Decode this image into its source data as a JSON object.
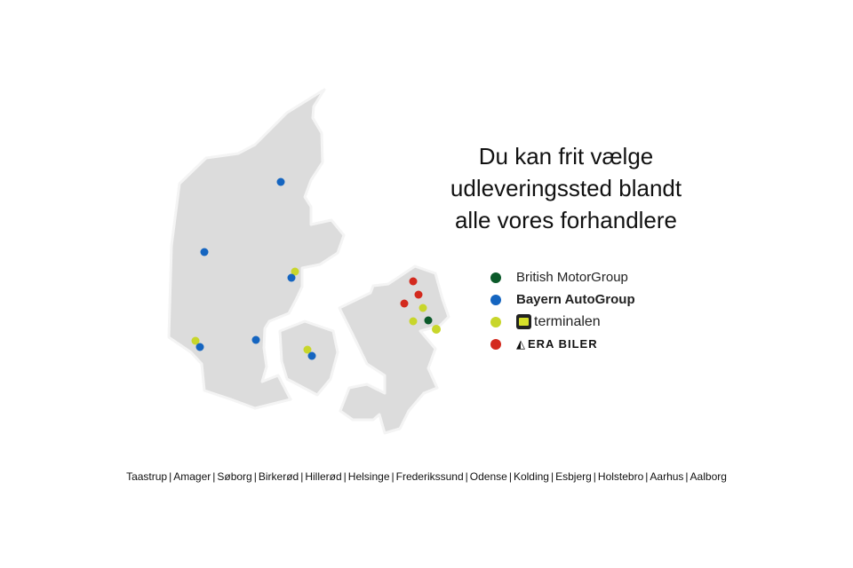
{
  "headline": [
    "Du kan frit vælge",
    "udleveringssted blandt",
    "alle vores forhandlere"
  ],
  "legend": [
    {
      "label": "British MotorGroup",
      "color": "#0b5a2a",
      "icon": "circle"
    },
    {
      "label": "Bayern AutoGroup",
      "color": "#1565c0",
      "icon": "circle"
    },
    {
      "label": "terminalen",
      "color": "#c8d62b",
      "icon": "terminalen-logo"
    },
    {
      "label": "ERA BILER",
      "color": "#d32a1e",
      "icon": "era-biler-logo"
    }
  ],
  "map": {
    "land_color": "#dcdcdc",
    "outline_color": "#f2f2f2",
    "regions": [
      "Jylland",
      "Fyn",
      "Sjælland"
    ]
  },
  "cities": [
    "Taastrup",
    "Amager",
    "Søborg",
    "Birkerød",
    "Hillerød",
    "Helsinge",
    "Frederikssund",
    "Odense",
    "Kolding",
    "Esbjerg",
    "Holstebro",
    "Aarhus",
    "Aalborg"
  ]
}
